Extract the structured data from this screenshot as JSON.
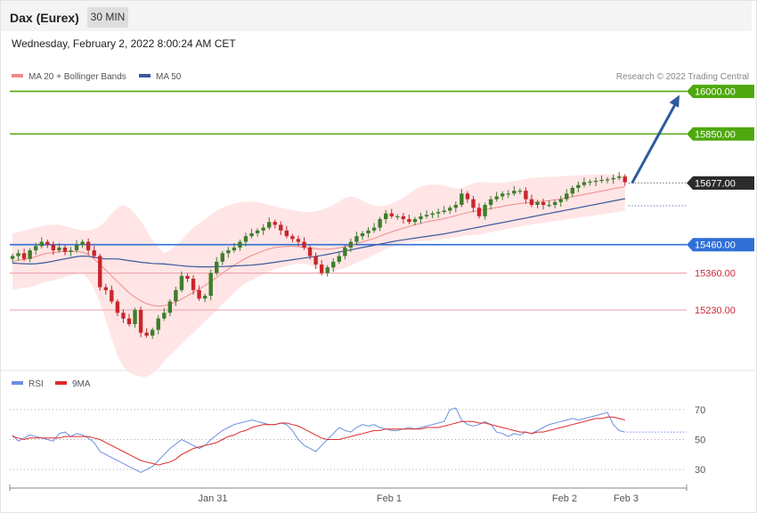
{
  "header": {
    "title": "Dax (Eurex)",
    "timeframe": "30 MIN",
    "datetime": "Wednesday, February 2, 2022 8:00:24 AM CET"
  },
  "legend": {
    "ma20": "MA 20 + Bollinger Bands",
    "ma50": "MA 50",
    "credit": "Research © 2022 Trading Central",
    "rsi": "RSI",
    "ma9": "9MA"
  },
  "colors": {
    "ma20": "#f08a8a",
    "ma50": "#3a5a9a",
    "band": "#ffe1e1",
    "resistance": "#4fa80f",
    "support": "#2f6fd6",
    "support2": "#f2a8b4",
    "current": "#2b2b2b",
    "arrow": "#2d5b9e",
    "up": "#3e7d2b",
    "down": "#c8262b",
    "rsi": "#6a8fe0",
    "rsi_ma": "#e0292b"
  },
  "chart_data": [
    {
      "type": "candlestick",
      "title": "Dax (Eurex)",
      "timeframe": "30 MIN",
      "ylim": [
        15020,
        16030
      ],
      "x_ticks": [
        "Jan 31",
        "Feb 1",
        "Feb 2",
        "Feb 3"
      ],
      "levels": [
        {
          "label": "16000.00",
          "value": 16000,
          "kind": "resistance"
        },
        {
          "label": "15850.00",
          "value": 15850,
          "kind": "resistance"
        },
        {
          "label": "15677.00",
          "value": 15677,
          "kind": "current"
        },
        {
          "label": "15460.00",
          "value": 15460,
          "kind": "support"
        },
        {
          "label": "15360.00",
          "value": 15360,
          "kind": "support2"
        },
        {
          "label": "15230.00",
          "value": 15230,
          "kind": "support2"
        }
      ],
      "close": [
        15420,
        15430,
        15410,
        15440,
        15455,
        15470,
        15460,
        15440,
        15450,
        15435,
        15440,
        15460,
        15470,
        15440,
        15420,
        15310,
        15300,
        15260,
        15220,
        15200,
        15180,
        15230,
        15150,
        15140,
        15160,
        15200,
        15220,
        15260,
        15300,
        15350,
        15340,
        15300,
        15270,
        15280,
        15360,
        15400,
        15430,
        15440,
        15450,
        15470,
        15490,
        15500,
        15510,
        15520,
        15540,
        15530,
        15510,
        15490,
        15480,
        15470,
        15450,
        15420,
        15390,
        15360,
        15380,
        15400,
        15420,
        15450,
        15470,
        15490,
        15500,
        15510,
        15520,
        15550,
        15570,
        15560,
        15560,
        15550,
        15540,
        15550,
        15560,
        15565,
        15570,
        15575,
        15580,
        15590,
        15600,
        15640,
        15620,
        15590,
        15560,
        15600,
        15620,
        15630,
        15640,
        15640,
        15650,
        15650,
        15620,
        15600,
        15610,
        15600,
        15600,
        15610,
        15620,
        15640,
        15660,
        15670,
        15680,
        15682,
        15685,
        15688,
        15690,
        15695,
        15700,
        15680
      ],
      "ma20": [
        15400,
        15405,
        15408,
        15412,
        15418,
        15425,
        15430,
        15432,
        15435,
        15436,
        15436,
        15436,
        15434,
        15425,
        15410,
        15390,
        15370,
        15350,
        15330,
        15310,
        15290,
        15275,
        15262,
        15252,
        15246,
        15243,
        15245,
        15250,
        15258,
        15268,
        15280,
        15292,
        15304,
        15316,
        15330,
        15345,
        15360,
        15374,
        15388,
        15400,
        15412,
        15422,
        15430,
        15438,
        15445,
        15450,
        15452,
        15454,
        15454,
        15453,
        15450,
        15448,
        15446,
        15444,
        15444,
        15446,
        15449,
        15453,
        15458,
        15464,
        15470,
        15476,
        15482,
        15490,
        15498,
        15505,
        15512,
        15518,
        15524,
        15530,
        15535,
        15540,
        15544,
        15548,
        15552,
        15557,
        15562,
        15568,
        15573,
        15577,
        15580,
        15583,
        15587,
        15591,
        15595,
        15599,
        15602,
        15605,
        15607,
        15609,
        15611,
        15613,
        15615,
        15618,
        15621,
        15625,
        15629,
        15633,
        15637,
        15641,
        15645,
        15649,
        15653,
        15657,
        15661,
        15664
      ],
      "bb_upper": [
        15500,
        15505,
        15510,
        15515,
        15520,
        15525,
        15530,
        15530,
        15530,
        15525,
        15520,
        15515,
        15510,
        15510,
        15515,
        15525,
        15545,
        15570,
        15590,
        15600,
        15590,
        15570,
        15545,
        15510,
        15475,
        15450,
        15430,
        15440,
        15455,
        15475,
        15500,
        15520,
        15535,
        15550,
        15565,
        15580,
        15590,
        15598,
        15605,
        15610,
        15612,
        15612,
        15610,
        15606,
        15600,
        15595,
        15590,
        15586,
        15582,
        15578,
        15575,
        15575,
        15578,
        15582,
        15590,
        15600,
        15612,
        15625,
        15630,
        15625,
        15615,
        15605,
        15598,
        15595,
        15598,
        15605,
        15615,
        15625,
        15640,
        15655,
        15665,
        15670,
        15672,
        15672,
        15668,
        15662,
        15658,
        15660,
        15668,
        15676,
        15680,
        15680,
        15678,
        15677,
        15678,
        15680,
        15684,
        15688,
        15692,
        15695,
        15697,
        15698,
        15699,
        15700,
        15701,
        15702,
        15703,
        15704,
        15705,
        15706,
        15707,
        15708,
        15708,
        15707,
        15706,
        15704
      ],
      "bb_lower": [
        15300,
        15305,
        15308,
        15310,
        15316,
        15325,
        15330,
        15334,
        15340,
        15347,
        15352,
        15357,
        15358,
        15340,
        15305,
        15255,
        15195,
        15130,
        15070,
        15030,
        15010,
        15000,
        14995,
        14995,
        15005,
        15025,
        15050,
        15070,
        15090,
        15110,
        15130,
        15150,
        15170,
        15190,
        15210,
        15230,
        15250,
        15270,
        15290,
        15310,
        15325,
        15335,
        15345,
        15355,
        15365,
        15375,
        15380,
        15385,
        15390,
        15392,
        15392,
        15388,
        15380,
        15372,
        15368,
        15368,
        15372,
        15378,
        15386,
        15396,
        15405,
        15415,
        15425,
        15435,
        15445,
        15452,
        15460,
        15465,
        15468,
        15470,
        15472,
        15474,
        15476,
        15478,
        15480,
        15483,
        15486,
        15490,
        15492,
        15494,
        15496,
        15500,
        15504,
        15508,
        15512,
        15516,
        15520,
        15524,
        15528,
        15531,
        15534,
        15537,
        15540,
        15543,
        15546,
        15549,
        15552,
        15555,
        15558,
        15561,
        15564,
        15567,
        15570,
        15573,
        15576,
        15580
      ],
      "ma50": [
        15395,
        15394,
        15393,
        15392,
        15393,
        15395,
        15398,
        15402,
        15406,
        15410,
        15414,
        15418,
        15420,
        15419,
        15416,
        15412,
        15410,
        15410,
        15410,
        15407,
        15404,
        15401,
        15398,
        15396,
        15394,
        15393,
        15392,
        15390,
        15388,
        15386,
        15384,
        15383,
        15382,
        15382,
        15382,
        15383,
        15383,
        15384,
        15385,
        15386,
        15387,
        15388,
        15390,
        15392,
        15395,
        15398,
        15401,
        15404,
        15407,
        15410,
        15413,
        15416,
        15419,
        15422,
        15426,
        15430,
        15434,
        15438,
        15442,
        15446,
        15450,
        15454,
        15458,
        15462,
        15466,
        15470,
        15474,
        15477,
        15480,
        15483,
        15486,
        15489,
        15492,
        15495,
        15498,
        15502,
        15506,
        15510,
        15514,
        15518,
        15522,
        15526,
        15530,
        15534,
        15538,
        15542,
        15546,
        15550,
        15554,
        15558,
        15562,
        15566,
        15570,
        15574,
        15578,
        15582,
        15586,
        15590,
        15594,
        15598,
        15602,
        15606,
        15610,
        15614,
        15618,
        15622
      ],
      "projection": {
        "from": 15677,
        "to": 16000
      }
    },
    {
      "type": "line",
      "title": "RSI",
      "ylim": [
        20,
        80
      ],
      "y_ticks": [
        70,
        50,
        30
      ],
      "x_ticks": [
        "Jan 31",
        "Feb 1",
        "Feb 2",
        "Feb 3"
      ],
      "series": [
        {
          "name": "RSI",
          "values": [
            53,
            49,
            51,
            53,
            52,
            51,
            50,
            49,
            54,
            55,
            52,
            54,
            53,
            51,
            48,
            42,
            40,
            38,
            36,
            34,
            32,
            30,
            28,
            30,
            32,
            36,
            40,
            44,
            47,
            50,
            48,
            46,
            44,
            46,
            50,
            53,
            56,
            58,
            60,
            61,
            62,
            63,
            62,
            61,
            60,
            60,
            61,
            60,
            56,
            50,
            46,
            44,
            42,
            46,
            50,
            54,
            58,
            56,
            55,
            58,
            60,
            59,
            60,
            58,
            57,
            56,
            56,
            57,
            58,
            57,
            58,
            59,
            60,
            61,
            62,
            70,
            71,
            63,
            60,
            59,
            60,
            62,
            60,
            55,
            54,
            52,
            54,
            53,
            55,
            54,
            56,
            58,
            60,
            61,
            62,
            63,
            64,
            63,
            64,
            65,
            66,
            67,
            68,
            60,
            56,
            55
          ]
        },
        {
          "name": "9MA",
          "values": [
            52,
            51,
            50,
            51,
            51,
            51,
            51,
            51,
            51,
            52,
            52,
            52,
            52,
            52,
            51,
            50,
            48,
            46,
            44,
            42,
            40,
            38,
            36,
            35,
            34,
            33,
            34,
            35,
            37,
            40,
            42,
            44,
            45,
            46,
            47,
            48,
            50,
            52,
            53,
            55,
            56,
            58,
            59,
            60,
            60,
            60,
            61,
            61,
            60,
            59,
            57,
            55,
            53,
            51,
            50,
            50,
            50,
            51,
            52,
            53,
            54,
            55,
            56,
            56,
            57,
            57,
            57,
            57,
            57,
            57,
            57,
            58,
            58,
            58,
            59,
            60,
            61,
            62,
            62,
            62,
            61,
            61,
            60,
            59,
            58,
            57,
            56,
            55,
            55,
            54,
            55,
            55,
            56,
            57,
            58,
            59,
            60,
            61,
            62,
            63,
            64,
            64,
            65,
            65,
            64,
            63
          ]
        }
      ]
    }
  ]
}
